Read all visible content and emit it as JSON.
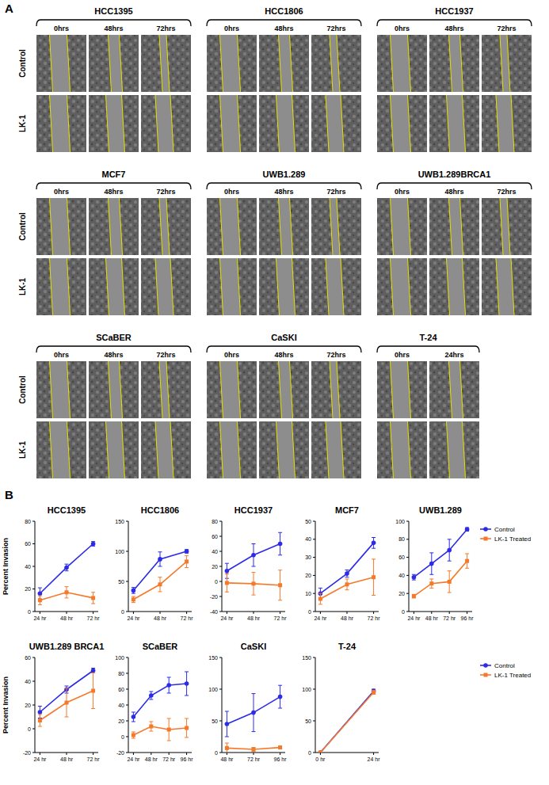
{
  "panel_labels": [
    "A",
    "B"
  ],
  "wound_healing": {
    "row_labels": [
      "Control",
      "LK-1"
    ],
    "groups": [
      {
        "cell_line": "HCC1395",
        "times": [
          "0hrs",
          "48hrs",
          "72hrs"
        ]
      },
      {
        "cell_line": "HCC1806",
        "times": [
          "0hrs",
          "48hrs",
          "72hrs"
        ]
      },
      {
        "cell_line": "HCC1937",
        "times": [
          "0hrs",
          "48hrs",
          "72hrs"
        ]
      },
      {
        "cell_line": "MCF7",
        "times": [
          "0hrs",
          "48hrs",
          "72hrs"
        ]
      },
      {
        "cell_line": "UWB1.289",
        "times": [
          "0hrs",
          "48hrs",
          "72hrs"
        ]
      },
      {
        "cell_line": "UWB1.289BRCA1",
        "times": [
          "0hrs",
          "48hrs",
          "72hrs"
        ]
      },
      {
        "cell_line": "SCaBER",
        "times": [
          "0hrs",
          "48hrs",
          "72hrs"
        ]
      },
      {
        "cell_line": "CaSKI",
        "times": [
          "0hrs",
          "48hrs",
          "72hrs"
        ]
      },
      {
        "cell_line": "T-24",
        "times": [
          "0hrs",
          "24hrs"
        ]
      }
    ]
  },
  "chart_data": [
    {
      "type": "line",
      "title": "HCC1395",
      "y_label": "Percent Invasion",
      "categories": [
        "24 hr",
        "48 hr",
        "72 hr"
      ],
      "ylim": [
        0,
        80
      ],
      "yticks": [
        0,
        20,
        40,
        60,
        80
      ],
      "series": [
        {
          "name": "Control",
          "color": "#2b2be8",
          "marker": "circle",
          "values": [
            16,
            39,
            60
          ],
          "errors": [
            5,
            3,
            2
          ]
        },
        {
          "name": "LK-1 Treated",
          "color": "#f5792a",
          "marker": "square",
          "values": [
            10,
            17,
            12
          ],
          "errors": [
            4,
            5,
            5
          ]
        }
      ]
    },
    {
      "type": "line",
      "title": "HCC1806",
      "categories": [
        "24 hr",
        "48 hr",
        "72 hr"
      ],
      "ylim": [
        0,
        150
      ],
      "yticks": [
        0,
        50,
        100,
        150
      ],
      "series": [
        {
          "name": "Control",
          "color": "#2b2be8",
          "marker": "circle",
          "values": [
            35,
            87,
            100
          ],
          "errors": [
            5,
            12,
            3
          ]
        },
        {
          "name": "LK-1 Treated",
          "color": "#f5792a",
          "marker": "square",
          "values": [
            20,
            45,
            83
          ],
          "errors": [
            5,
            12,
            10
          ]
        }
      ]
    },
    {
      "type": "line",
      "title": "HCC1937",
      "categories": [
        "24 hr",
        "48 hr",
        "72 hr"
      ],
      "ylim": [
        -40,
        80
      ],
      "yticks": [
        -40,
        -20,
        0,
        20,
        40,
        60,
        80
      ],
      "series": [
        {
          "name": "Control",
          "color": "#2b2be8",
          "marker": "circle",
          "values": [
            14,
            35,
            50
          ],
          "errors": [
            10,
            15,
            15
          ]
        },
        {
          "name": "LK-1 Treated",
          "color": "#f5792a",
          "marker": "square",
          "values": [
            -2,
            -3,
            -5
          ],
          "errors": [
            12,
            15,
            20
          ]
        }
      ]
    },
    {
      "type": "line",
      "title": "MCF7",
      "categories": [
        "24 hr",
        "48 hr",
        "72 hr"
      ],
      "ylim": [
        0,
        50
      ],
      "yticks": [
        0,
        10,
        20,
        30,
        40,
        50
      ],
      "series": [
        {
          "name": "Control",
          "color": "#2b2be8",
          "marker": "circle",
          "values": [
            10,
            21,
            38
          ],
          "errors": [
            3,
            2,
            3
          ]
        },
        {
          "name": "LK-1 Treated",
          "color": "#f5792a",
          "marker": "square",
          "values": [
            7,
            15,
            19
          ],
          "errors": [
            3,
            3,
            10
          ]
        }
      ]
    },
    {
      "type": "line",
      "title": "UWB1.289",
      "legend": "right",
      "categories": [
        "24 hr",
        "48 hr",
        "72 hr",
        "96 hr"
      ],
      "ylim": [
        0,
        100
      ],
      "yticks": [
        0,
        20,
        40,
        60,
        80,
        100
      ],
      "series": [
        {
          "name": "Control",
          "color": "#2b2be8",
          "marker": "circle",
          "values": [
            38,
            53,
            68,
            91
          ],
          "errors": [
            3,
            12,
            12,
            2
          ]
        },
        {
          "name": "LK-1 Treated",
          "color": "#f5792a",
          "marker": "square",
          "values": [
            17,
            31,
            33,
            56
          ],
          "errors": [
            2,
            5,
            12,
            8
          ]
        }
      ]
    },
    {
      "type": "line",
      "title": "UWB1.289 BRCA1",
      "y_label": "Percent Invasion",
      "categories": [
        "24 hr",
        "48 hr",
        "72 hr"
      ],
      "ylim": [
        -20,
        60
      ],
      "yticks": [
        -20,
        0,
        20,
        40,
        60
      ],
      "series": [
        {
          "name": "Control",
          "color": "#2b2be8",
          "marker": "circle",
          "values": [
            14,
            33,
            49
          ],
          "errors": [
            5,
            3,
            2
          ]
        },
        {
          "name": "LK-1 Treated",
          "color": "#f5792a",
          "marker": "square",
          "values": [
            7,
            22,
            32
          ],
          "errors": [
            5,
            12,
            15
          ]
        }
      ]
    },
    {
      "type": "line",
      "title": "SCaBER",
      "categories": [
        "24 hr",
        "48 hr",
        "72 hr",
        "96 hr"
      ],
      "ylim": [
        -20,
        100
      ],
      "yticks": [
        -20,
        0,
        20,
        40,
        60,
        80,
        100
      ],
      "series": [
        {
          "name": "Control",
          "color": "#2b2be8",
          "marker": "circle",
          "values": [
            25,
            52,
            65,
            67
          ],
          "errors": [
            6,
            5,
            10,
            15
          ]
        },
        {
          "name": "LK-1 Treated",
          "color": "#f5792a",
          "marker": "square",
          "values": [
            2,
            13,
            9,
            11
          ],
          "errors": [
            4,
            6,
            14,
            12
          ]
        }
      ]
    },
    {
      "type": "line",
      "title": "CaSKI",
      "categories": [
        "48 hr",
        "72 hr",
        "96 hr"
      ],
      "ylim": [
        0,
        150
      ],
      "yticks": [
        0,
        50,
        100,
        150
      ],
      "series": [
        {
          "name": "Control",
          "color": "#2b2be8",
          "marker": "circle",
          "values": [
            45,
            63,
            88
          ],
          "errors": [
            20,
            30,
            18
          ]
        },
        {
          "name": "LK-1 Treated",
          "color": "#f5792a",
          "marker": "square",
          "values": [
            7,
            5,
            8
          ],
          "errors": [
            8,
            3,
            2
          ]
        }
      ]
    },
    {
      "type": "line",
      "title": "T-24",
      "legend": "right",
      "categories": [
        "0 hr",
        "24 hr"
      ],
      "ylim": [
        0,
        150
      ],
      "yticks": [
        0,
        50,
        100,
        150
      ],
      "series": [
        {
          "name": "Control",
          "color": "#2b2be8",
          "marker": "circle",
          "values": [
            0,
            97
          ],
          "errors": [
            0,
            3
          ]
        },
        {
          "name": "LK-1 Treated",
          "color": "#f5792a",
          "marker": "square",
          "values": [
            0,
            95
          ],
          "errors": [
            0,
            3
          ]
        }
      ]
    }
  ]
}
